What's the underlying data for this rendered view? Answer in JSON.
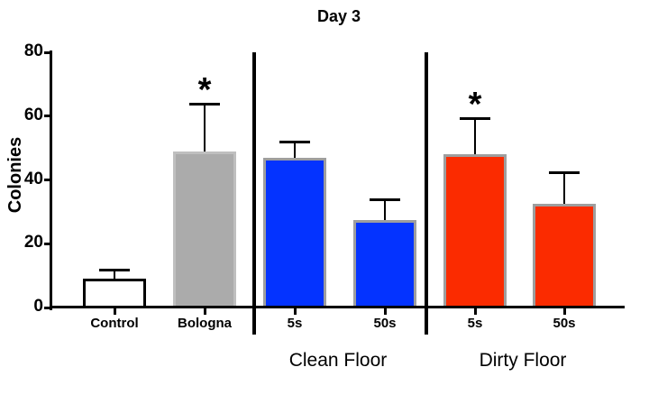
{
  "chart_data": {
    "type": "bar",
    "title": "Day 3",
    "ylabel": "Colonies",
    "xlabel": "",
    "ylim": [
      0,
      80
    ],
    "yticks": [
      0,
      20,
      40,
      60,
      80
    ],
    "grid": false,
    "legend": "none",
    "sig_marker": "*",
    "group_labels": [
      "Clean Floor",
      "Dirty Floor"
    ],
    "bars": [
      {
        "id": "control",
        "label": "Control",
        "group": null,
        "value": 9,
        "error_top": 12,
        "fill": "#ffffff",
        "border": "#000000",
        "significant": false
      },
      {
        "id": "bologna",
        "label": "Bologna",
        "group": null,
        "value": 49,
        "error_top": 64,
        "fill": "#ababab",
        "border": "#bfbfbf",
        "significant": true
      },
      {
        "id": "clean-5s",
        "label": "5s",
        "group": "Clean Floor",
        "value": 47,
        "error_top": 52,
        "fill": "#0433ff",
        "border": "#9e9e9e",
        "significant": false
      },
      {
        "id": "clean-50s",
        "label": "50s",
        "group": "Clean Floor",
        "value": 27.5,
        "error_top": 34,
        "fill": "#0433ff",
        "border": "#9e9e9e",
        "significant": false
      },
      {
        "id": "dirty-5s",
        "label": "5s",
        "group": "Dirty Floor",
        "value": 48,
        "error_top": 59.5,
        "fill": "#fb2b00",
        "border": "#9e9e9e",
        "significant": true
      },
      {
        "id": "dirty-50s",
        "label": "50s",
        "group": "Dirty Floor",
        "value": 32.5,
        "error_top": 42.5,
        "fill": "#fb2b00",
        "border": "#9e9e9e",
        "significant": false
      }
    ],
    "axis_color": "#000000"
  }
}
